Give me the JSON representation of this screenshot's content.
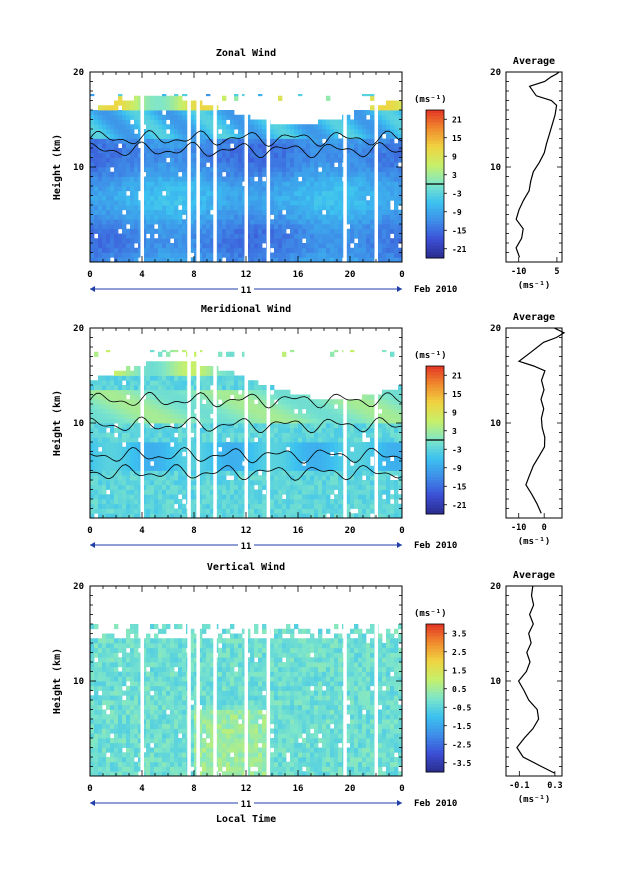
{
  "figure": {
    "date_label": "Feb 2010",
    "day_label": "11",
    "time_axis_label": "Local Time",
    "time_ticks": [
      "0",
      "4",
      "8",
      "12",
      "16",
      "20",
      "0"
    ]
  },
  "panels": [
    {
      "title": "Zonal Wind",
      "ylabel": "Height (km)",
      "ylim": [
        0,
        20
      ],
      "yticks": [
        "20",
        "10"
      ],
      "colorbar_unit": "(ms⁻¹)",
      "colorbar_ticks": [
        "21",
        "15",
        "9",
        "3",
        "-3",
        "-9",
        "-15",
        "-21"
      ],
      "average_title": "Average",
      "average_yticks": [
        "20",
        "10"
      ],
      "average_xticks": [
        "-10",
        "5"
      ],
      "average_xlabel": "(ms⁻¹)"
    },
    {
      "title": "Meridional Wind",
      "ylabel": "Height (km)",
      "ylim": [
        0,
        20
      ],
      "yticks": [
        "20",
        "10"
      ],
      "colorbar_unit": "(ms⁻¹)",
      "colorbar_ticks": [
        "21",
        "15",
        "9",
        "3",
        "-3",
        "-9",
        "-15",
        "-21"
      ],
      "average_title": "Average",
      "average_yticks": [
        "20",
        "10"
      ],
      "average_xticks": [
        "-10",
        "0"
      ],
      "average_xlabel": "(ms⁻¹)"
    },
    {
      "title": "Vertical Wind",
      "ylabel": "Height (km)",
      "ylim": [
        0,
        20
      ],
      "yticks": [
        "20",
        "10"
      ],
      "colorbar_unit": "(ms⁻¹)",
      "colorbar_ticks": [
        "3.5",
        "2.5",
        "1.5",
        "0.5",
        "-0.5",
        "-1.5",
        "-2.5",
        "-3.5"
      ],
      "average_title": "Average",
      "average_yticks": [
        "20",
        "10"
      ],
      "average_xticks": [
        "-0.1",
        "0.3"
      ],
      "average_xlabel": "(ms⁻¹)"
    }
  ],
  "chart_data": [
    {
      "type": "heatmap",
      "title": "Zonal Wind",
      "ylabel": "Height (km)",
      "xlabel": "",
      "x_range_hours": [
        0,
        24
      ],
      "ylim": [
        0,
        20
      ],
      "colorbar_range": [
        -24,
        24
      ],
      "description_colors": "jet colormap, blue = negative, red = positive"
    },
    {
      "type": "line",
      "title": "Average",
      "x": [
        -10,
        -11,
        -9,
        -8,
        -11,
        -10,
        -8,
        -6,
        -5,
        -4,
        -2,
        0,
        1,
        2,
        3,
        4,
        5,
        3,
        -3,
        -6,
        0,
        3,
        5,
        6
      ],
      "y": [
        0.5,
        1.5,
        2.5,
        3.5,
        4.5,
        5.5,
        6.5,
        7.5,
        8.5,
        9.5,
        10.5,
        11.5,
        12.5,
        13.5,
        14.5,
        15.5,
        16.5,
        17.0,
        17.5,
        18.5,
        19.0,
        19.5,
        19.8,
        20
      ],
      "xlim": [
        -15,
        7
      ],
      "ylim": [
        0,
        20
      ],
      "xlabel": "(ms⁻¹)"
    },
    {
      "type": "heatmap",
      "title": "Meridional Wind",
      "ylabel": "Height (km)",
      "x_range_hours": [
        0,
        24
      ],
      "ylim": [
        0,
        20
      ],
      "colorbar_range": [
        -24,
        24
      ]
    },
    {
      "type": "line",
      "title": "Average",
      "x": [
        -1,
        -3,
        -5,
        -7,
        -6,
        -4,
        -2,
        0,
        0,
        -1,
        -1,
        0,
        -1,
        0,
        -1,
        0,
        -4,
        -10,
        -5,
        0,
        5,
        8,
        4
      ],
      "y": [
        0.5,
        1.5,
        2.5,
        3.5,
        4.5,
        5.5,
        6.5,
        7.5,
        8.5,
        9.5,
        10.5,
        11.5,
        12.5,
        13.5,
        14.5,
        15.5,
        16.0,
        16.5,
        17.5,
        18.5,
        19.0,
        19.5,
        20
      ],
      "xlim": [
        -15,
        7
      ],
      "ylim": [
        0,
        20
      ],
      "xlabel": "(ms⁻¹)"
    },
    {
      "type": "heatmap",
      "title": "Vertical Wind",
      "ylabel": "Height (km)",
      "x_range_hours": [
        0,
        24
      ],
      "ylim": [
        0,
        20
      ],
      "colorbar_range": [
        -4,
        4
      ]
    },
    {
      "type": "line",
      "title": "Average",
      "x": [
        0.3,
        0.15,
        -0.05,
        -0.12,
        -0.05,
        0.05,
        0.12,
        0.1,
        0.0,
        -0.05,
        -0.1,
        -0.02,
        0.02,
        -0.02,
        0.03,
        0.0,
        0.05,
        0.02,
        0.06,
        0.03,
        0.05
      ],
      "y": [
        0.3,
        1.0,
        2.0,
        3.0,
        4.0,
        5.0,
        6.0,
        7.0,
        8.0,
        9.0,
        10.0,
        11.0,
        12.0,
        13.0,
        14.0,
        15.0,
        16.0,
        17.0,
        18.0,
        19.0,
        20.0
      ],
      "xlim": [
        -0.25,
        0.38
      ],
      "ylim": [
        0,
        20
      ],
      "xlabel": "(ms⁻¹)"
    }
  ],
  "colors": {
    "jet": [
      "#2b2c8c",
      "#3c4fd6",
      "#3e8ee8",
      "#3cc2f0",
      "#7fe6c8",
      "#c6f06a",
      "#f0d440",
      "#f08a2e",
      "#e33425"
    ]
  }
}
